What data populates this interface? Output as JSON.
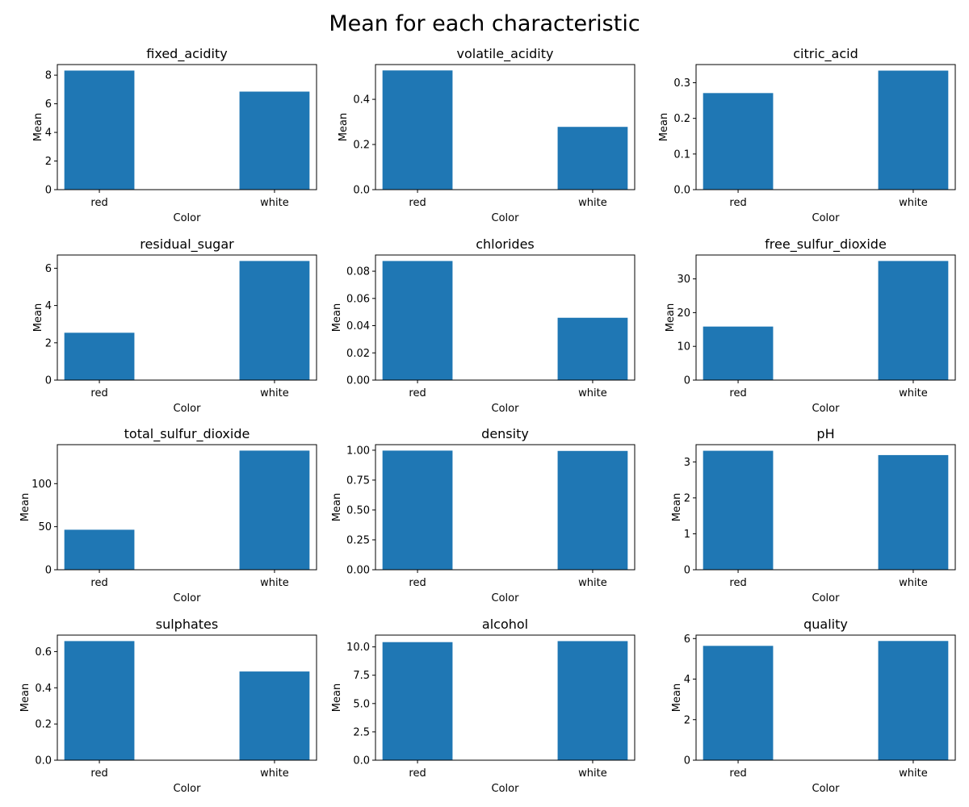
{
  "figure": {
    "suptitle": "Mean for each characteristic"
  },
  "colors": {
    "bar": "#1f77b4"
  },
  "chart_data": [
    {
      "type": "bar",
      "title": "fixed_acidity",
      "xlabel": "Color",
      "ylabel": "Mean",
      "categories": [
        "red",
        "white"
      ],
      "values": [
        8.32,
        6.85
      ],
      "ylim": [
        0,
        8.74
      ],
      "yticks": [
        0,
        2,
        4,
        6,
        8
      ],
      "yticklabels": [
        "0",
        "2",
        "4",
        "6",
        "8"
      ]
    },
    {
      "type": "bar",
      "title": "volatile_acidity",
      "xlabel": "Color",
      "ylabel": "Mean",
      "categories": [
        "red",
        "white"
      ],
      "values": [
        0.528,
        0.278
      ],
      "ylim": [
        0,
        0.554
      ],
      "yticks": [
        0,
        0.2,
        0.4
      ],
      "yticklabels": [
        "0.0",
        "0.2",
        "0.4"
      ]
    },
    {
      "type": "bar",
      "title": "citric_acid",
      "xlabel": "Color",
      "ylabel": "Mean",
      "categories": [
        "red",
        "white"
      ],
      "values": [
        0.271,
        0.334
      ],
      "ylim": [
        0,
        0.351
      ],
      "yticks": [
        0,
        0.1,
        0.2,
        0.3
      ],
      "yticklabels": [
        "0.0",
        "0.1",
        "0.2",
        "0.3"
      ]
    },
    {
      "type": "bar",
      "title": "residual_sugar",
      "xlabel": "Color",
      "ylabel": "Mean",
      "categories": [
        "red",
        "white"
      ],
      "values": [
        2.54,
        6.39
      ],
      "ylim": [
        0,
        6.71
      ],
      "yticks": [
        0,
        2,
        4,
        6
      ],
      "yticklabels": [
        "0",
        "2",
        "4",
        "6"
      ]
    },
    {
      "type": "bar",
      "title": "chlorides",
      "xlabel": "Color",
      "ylabel": "Mean",
      "categories": [
        "red",
        "white"
      ],
      "values": [
        0.0875,
        0.0458
      ],
      "ylim": [
        0,
        0.0919
      ],
      "yticks": [
        0,
        0.02,
        0.04,
        0.06,
        0.08
      ],
      "yticklabels": [
        "0.00",
        "0.02",
        "0.04",
        "0.06",
        "0.08"
      ]
    },
    {
      "type": "bar",
      "title": "free_sulfur_dioxide",
      "xlabel": "Color",
      "ylabel": "Mean",
      "categories": [
        "red",
        "white"
      ],
      "values": [
        15.87,
        35.31
      ],
      "ylim": [
        0,
        37.08
      ],
      "yticks": [
        0,
        10,
        20,
        30
      ],
      "yticklabels": [
        "0",
        "10",
        "20",
        "30"
      ]
    },
    {
      "type": "bar",
      "title": "total_sulfur_dioxide",
      "xlabel": "Color",
      "ylabel": "Mean",
      "categories": [
        "red",
        "white"
      ],
      "values": [
        46.47,
        138.36
      ],
      "ylim": [
        0,
        145.28
      ],
      "yticks": [
        0,
        50,
        100
      ],
      "yticklabels": [
        "0",
        "50",
        "100"
      ]
    },
    {
      "type": "bar",
      "title": "density",
      "xlabel": "Color",
      "ylabel": "Mean",
      "categories": [
        "red",
        "white"
      ],
      "values": [
        0.9967,
        0.994
      ],
      "ylim": [
        0,
        1.0465
      ],
      "yticks": [
        0,
        0.25,
        0.5,
        0.75,
        1.0
      ],
      "yticklabels": [
        "0.00",
        "0.25",
        "0.50",
        "0.75",
        "1.00"
      ]
    },
    {
      "type": "bar",
      "title": "pH",
      "xlabel": "Color",
      "ylabel": "Mean",
      "categories": [
        "red",
        "white"
      ],
      "values": [
        3.31,
        3.19
      ],
      "ylim": [
        0,
        3.48
      ],
      "yticks": [
        0,
        1,
        2,
        3
      ],
      "yticklabels": [
        "0",
        "1",
        "2",
        "3"
      ]
    },
    {
      "type": "bar",
      "title": "sulphates",
      "xlabel": "Color",
      "ylabel": "Mean",
      "categories": [
        "red",
        "white"
      ],
      "values": [
        0.658,
        0.49
      ],
      "ylim": [
        0,
        0.691
      ],
      "yticks": [
        0,
        0.2,
        0.4,
        0.6
      ],
      "yticklabels": [
        "0.0",
        "0.2",
        "0.4",
        "0.6"
      ]
    },
    {
      "type": "bar",
      "title": "alcohol",
      "xlabel": "Color",
      "ylabel": "Mean",
      "categories": [
        "red",
        "white"
      ],
      "values": [
        10.42,
        10.51
      ],
      "ylim": [
        0,
        11.04
      ],
      "yticks": [
        0,
        2.5,
        5.0,
        7.5,
        10.0
      ],
      "yticklabels": [
        "0.0",
        "2.5",
        "5.0",
        "7.5",
        "10.0"
      ]
    },
    {
      "type": "bar",
      "title": "quality",
      "xlabel": "Color",
      "ylabel": "Mean",
      "categories": [
        "red",
        "white"
      ],
      "values": [
        5.64,
        5.88
      ],
      "ylim": [
        0,
        6.17
      ],
      "yticks": [
        0,
        2,
        4,
        6
      ],
      "yticklabels": [
        "0",
        "2",
        "4",
        "6"
      ]
    }
  ]
}
